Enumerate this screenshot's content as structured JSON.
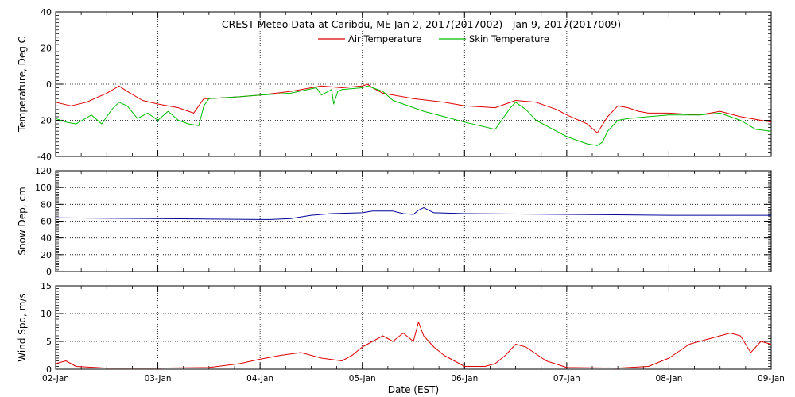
{
  "chart_data": {
    "title": "CREST Meteo Data at Caribou, ME   Jan  2, 2017(2017002) - Jan  9, 2017(2017009)",
    "xlabel": "Date (EST)",
    "x_ticks": [
      "02-Jan",
      "03-Jan",
      "04-Jan",
      "05-Jan",
      "06-Jan",
      "07-Jan",
      "08-Jan",
      "09-Jan"
    ],
    "colors": {
      "air": "#dd0000",
      "skin": "#00bb00",
      "snow": "#000099",
      "wind": "#dd0000"
    },
    "panels": [
      {
        "type": "line",
        "ylabel": "Temperature, Deg C",
        "ylim": [
          -40,
          40
        ],
        "y_ticks": [
          "-40",
          "-20",
          "0",
          "20",
          "40"
        ],
        "legend_position": "top-center",
        "series": [
          {
            "name": "Air Temperature",
            "color_key": "air",
            "x": [
              0,
              0.15,
              0.3,
              0.5,
              0.62,
              0.7,
              0.85,
              1.0,
              1.2,
              1.35,
              1.4,
              1.45,
              1.5,
              1.8,
              2.0,
              2.3,
              2.6,
              2.8,
              3.0,
              3.05,
              3.1,
              3.2,
              3.5,
              3.8,
              4.0,
              4.3,
              4.5,
              4.7,
              4.9,
              5.0,
              5.2,
              5.3,
              5.4,
              5.5,
              5.6,
              5.7,
              5.8,
              6.0,
              6.3,
              6.5,
              6.7,
              7.0
            ],
            "y": [
              -10,
              -12,
              -10,
              -5,
              -1,
              -4,
              -9,
              -11,
              -13,
              -16,
              -12,
              -8,
              -8,
              -7,
              -6,
              -4,
              -1,
              -2,
              -1,
              0,
              -2,
              -5,
              -8,
              -10,
              -12,
              -13,
              -9,
              -10,
              -14,
              -17,
              -22,
              -27,
              -18,
              -12,
              -13,
              -15,
              -16,
              -16,
              -17,
              -15,
              -18,
              -21
            ]
          },
          {
            "name": "Skin Temperature",
            "color_key": "skin",
            "x": [
              0,
              0.1,
              0.2,
              0.35,
              0.45,
              0.55,
              0.62,
              0.7,
              0.8,
              0.9,
              1.0,
              1.1,
              1.2,
              1.3,
              1.4,
              1.45,
              1.5,
              1.8,
              2.0,
              2.3,
              2.55,
              2.6,
              2.7,
              2.72,
              2.76,
              2.8,
              3.0,
              3.05,
              3.1,
              3.2,
              3.3,
              3.6,
              3.8,
              4.0,
              4.3,
              4.45,
              4.5,
              4.6,
              4.7,
              4.9,
              5.0,
              5.2,
              5.3,
              5.35,
              5.4,
              5.5,
              5.6,
              5.8,
              6.0,
              6.3,
              6.5,
              6.7,
              6.85,
              7.0
            ],
            "y": [
              -19,
              -21,
              -22,
              -17,
              -22,
              -14,
              -10,
              -12,
              -19,
              -16,
              -20,
              -15,
              -20,
              -22,
              -23,
              -12,
              -8,
              -7,
              -6,
              -5,
              -2,
              -6,
              -3,
              -11,
              -4,
              -3,
              -2,
              -1,
              -2,
              -4,
              -9,
              -15,
              -18,
              -21,
              -25,
              -13,
              -10,
              -14,
              -20,
              -26,
              -29,
              -33,
              -34,
              -32,
              -26,
              -20,
              -19,
              -18,
              -17,
              -17,
              -16,
              -20,
              -25,
              -26
            ]
          }
        ]
      },
      {
        "type": "line",
        "ylabel": "Snow Dep, cm",
        "ylim": [
          0,
          120
        ],
        "y_ticks": [
          "0",
          "20",
          "40",
          "60",
          "80",
          "100",
          "120"
        ],
        "series": [
          {
            "name": "",
            "color_key": "snow",
            "x": [
              0,
              1.0,
              2.0,
              2.1,
              2.3,
              2.5,
              2.7,
              3.0,
              3.1,
              3.3,
              3.4,
              3.5,
              3.55,
              3.6,
              3.7,
              4.0,
              5.0,
              6.0,
              7.0
            ],
            "y": [
              64,
              63,
              62,
              62,
              63,
              67,
              69,
              70,
              72,
              72,
              69,
              68,
              73,
              76,
              70,
              69,
              68,
              67,
              67
            ]
          }
        ]
      },
      {
        "type": "line",
        "ylabel": "Wind Spd, m/s",
        "ylim": [
          0,
          15
        ],
        "y_ticks": [
          "0",
          "5",
          "10",
          "15"
        ],
        "series": [
          {
            "name": "",
            "color_key": "wind",
            "x": [
              0,
              0.1,
              0.2,
              0.5,
              1.0,
              1.5,
              1.8,
              2.0,
              2.2,
              2.4,
              2.6,
              2.8,
              2.9,
              3.0,
              3.1,
              3.2,
              3.3,
              3.4,
              3.5,
              3.55,
              3.6,
              3.7,
              3.8,
              4.0,
              4.2,
              4.3,
              4.4,
              4.5,
              4.6,
              4.8,
              5.0,
              5.5,
              5.8,
              6.0,
              6.2,
              6.4,
              6.6,
              6.7,
              6.8,
              6.9,
              7.0
            ],
            "y": [
              1,
              1.5,
              0.5,
              0.2,
              0.2,
              0.3,
              1,
              1.8,
              2.5,
              3,
              2,
              1.5,
              2.5,
              4,
              5,
              6,
              5,
              6.5,
              5,
              8.5,
              6,
              4,
              2.5,
              0.5,
              0.5,
              1,
              2.5,
              4.5,
              4,
              1.5,
              0.3,
              0.2,
              0.5,
              2,
              4.5,
              5.5,
              6.5,
              6,
              3,
              5,
              4.5
            ]
          }
        ]
      }
    ]
  }
}
